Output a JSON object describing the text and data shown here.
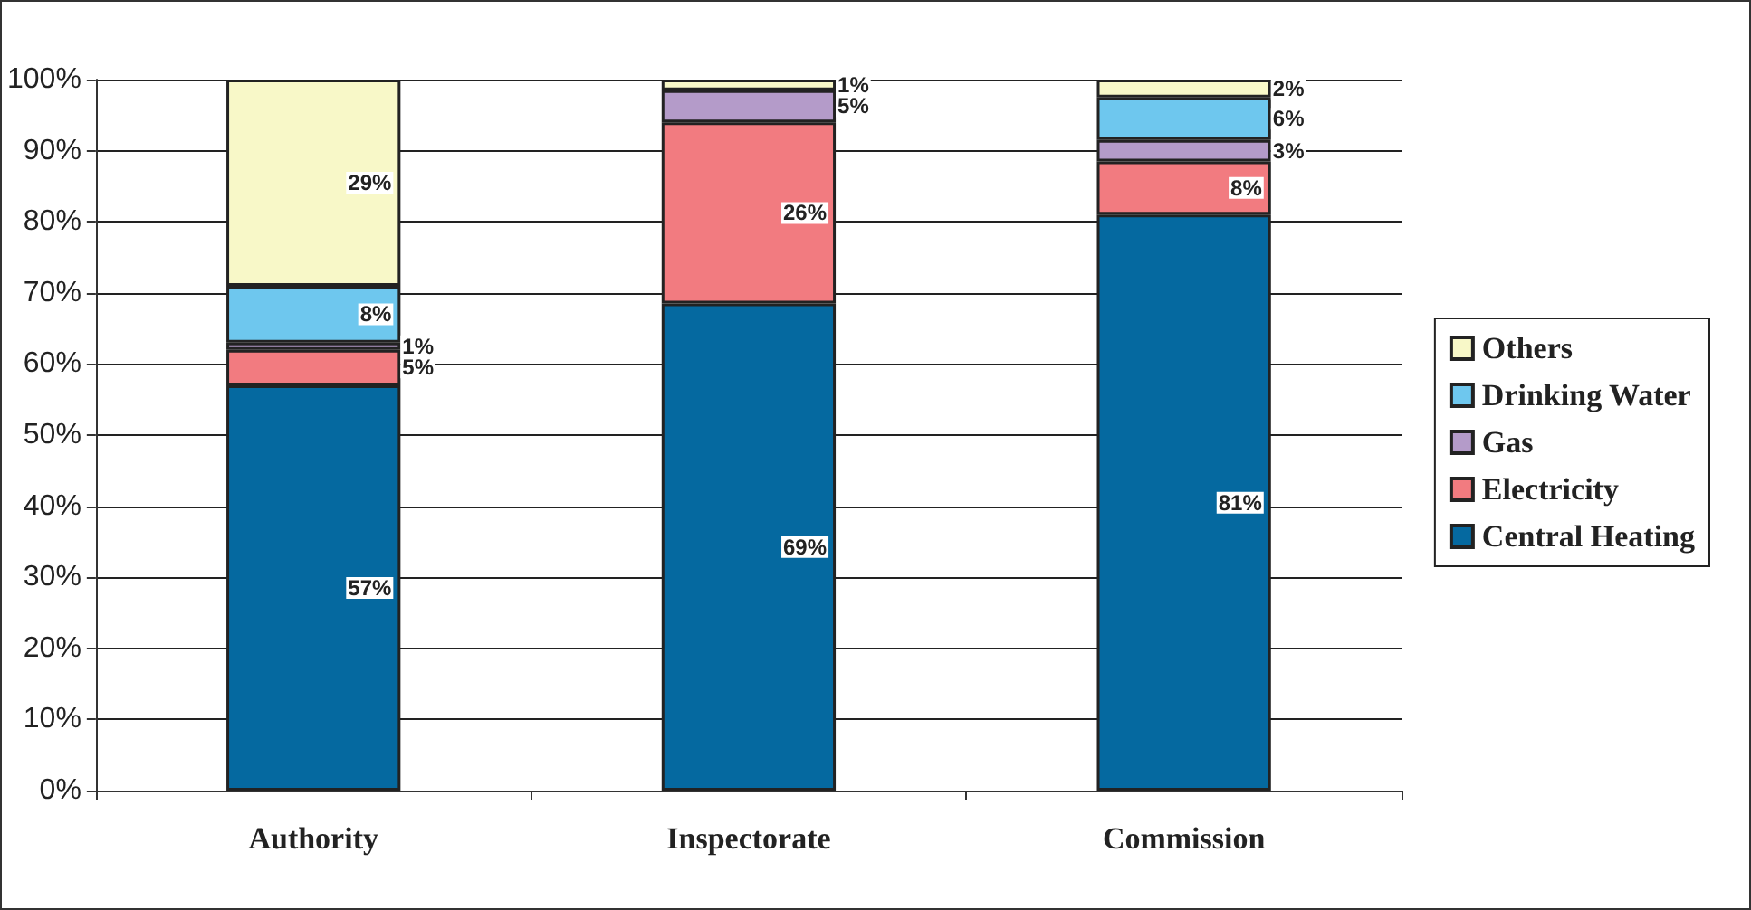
{
  "chart_data": {
    "type": "bar",
    "stacked": true,
    "categories": [
      "Authority",
      "Inspectorate",
      "Commission"
    ],
    "series": [
      {
        "name": "Central Heating",
        "color": "#0569a0",
        "values": [
          57,
          68.5,
          81
        ],
        "value_labels": [
          "57%",
          "69%",
          "81%"
        ]
      },
      {
        "name": "Electricity",
        "color": "#f27b80",
        "values": [
          5,
          25.5,
          7.5
        ],
        "value_labels": [
          "5%",
          "26%",
          "8%"
        ]
      },
      {
        "name": "Gas",
        "color": "#b49bc9",
        "values": [
          1,
          4.5,
          3
        ],
        "value_labels": [
          "1%",
          "5%",
          "3%"
        ]
      },
      {
        "name": "Drinking Water",
        "color": "#6ec7ee",
        "values": [
          8,
          null,
          6
        ],
        "value_labels": [
          "8%",
          null,
          "6%"
        ]
      },
      {
        "name": "Others",
        "color": "#f8f8c8",
        "values": [
          29,
          1.5,
          2.5
        ],
        "value_labels": [
          "29%",
          "1%",
          "2%"
        ]
      }
    ],
    "ylim": [
      0,
      100
    ],
    "yticks": [
      {
        "value": 0,
        "label": "0%"
      },
      {
        "value": 10,
        "label": "10%"
      },
      {
        "value": 20,
        "label": "20%"
      },
      {
        "value": 30,
        "label": "30%"
      },
      {
        "value": 40,
        "label": "40%"
      },
      {
        "value": 50,
        "label": "50%"
      },
      {
        "value": 60,
        "label": "60%"
      },
      {
        "value": 70,
        "label": "70%"
      },
      {
        "value": 80,
        "label": "80%"
      },
      {
        "value": 90,
        "label": "90%"
      },
      {
        "value": 100,
        "label": "100%"
      }
    ],
    "grid": "y",
    "legend": "right"
  }
}
